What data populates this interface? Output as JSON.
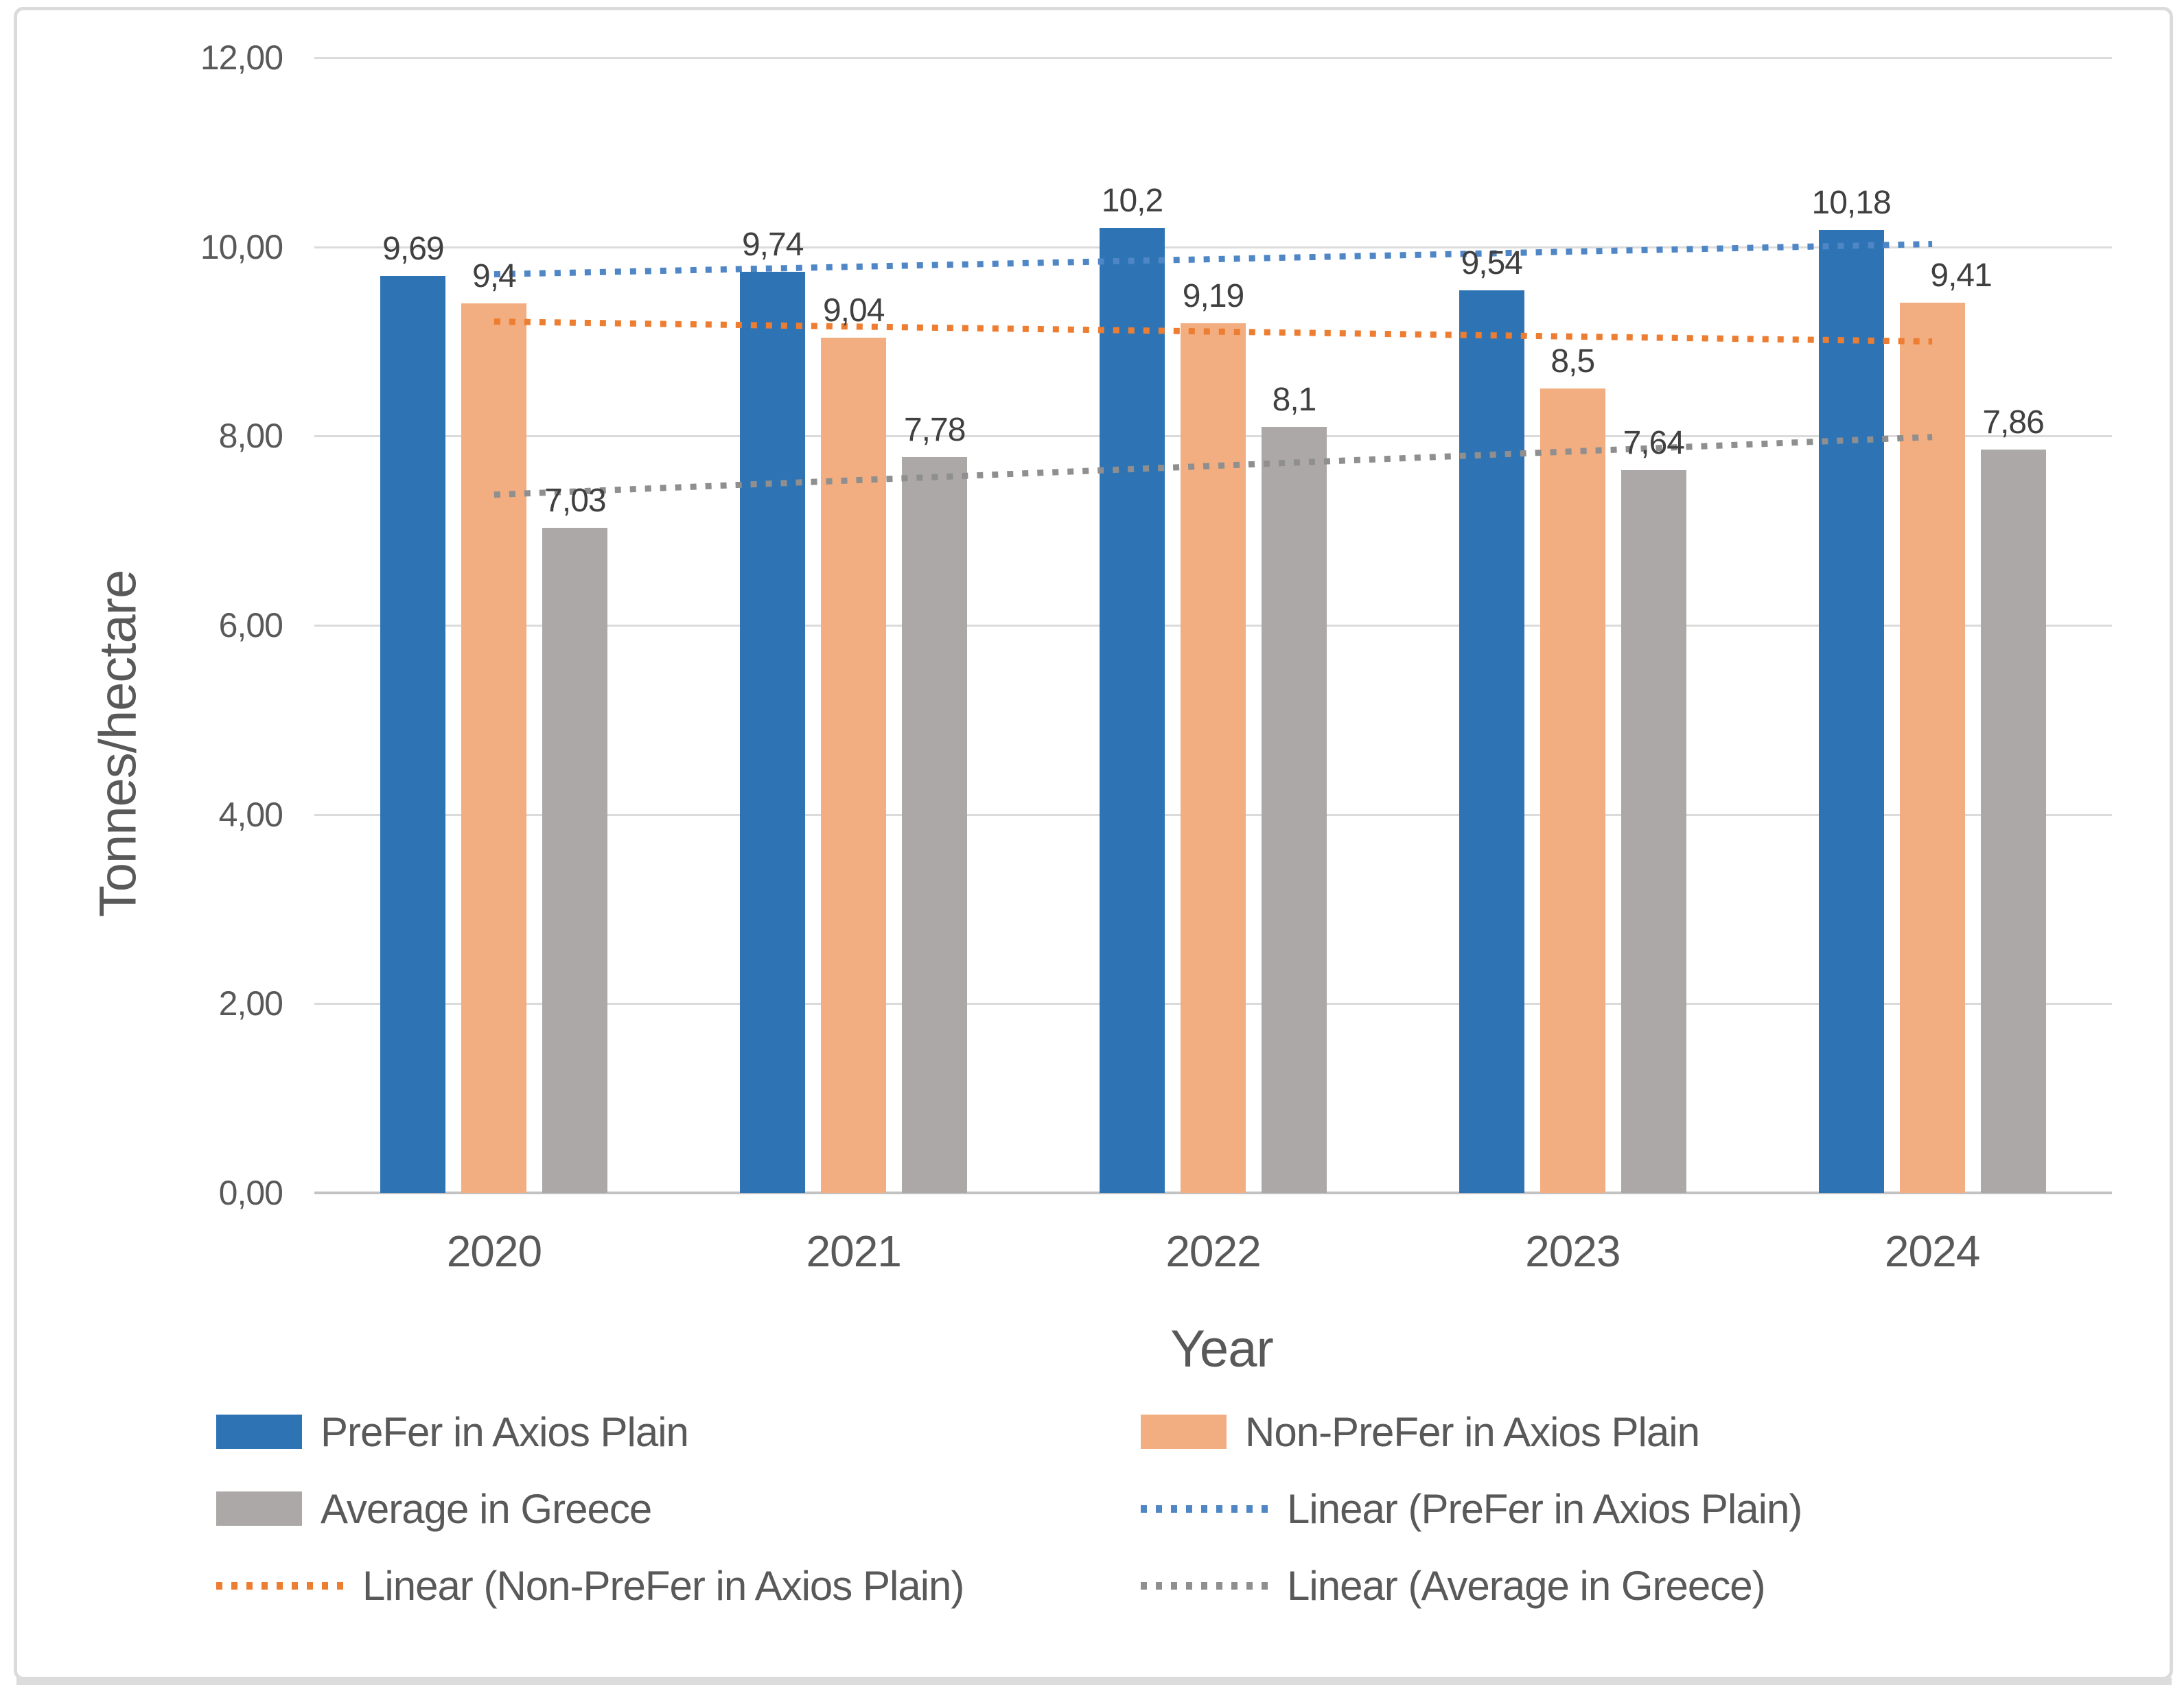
{
  "window": {
    "background": "#FFFFFF",
    "frame_border_color": "#DBDBDB",
    "bottom_band_color": "#DCDCDC"
  },
  "chart_data": {
    "type": "bar",
    "title": "",
    "xlabel": "Year",
    "ylabel": "Tonnes/hectare",
    "categories": [
      "2020",
      "2021",
      "2022",
      "2023",
      "2024"
    ],
    "series": [
      {
        "name": "PreFer in Axios Plain",
        "color": "#2E74B5",
        "values": [
          9.69,
          9.74,
          10.2,
          9.54,
          10.18
        ],
        "labels": [
          "9,69",
          "9,74",
          "10,2",
          "9,54",
          "10,18"
        ],
        "label_dx": [
          0,
          0,
          0,
          0,
          0
        ]
      },
      {
        "name": "Non-PreFer in Axios Plain",
        "color": "#F2AD80",
        "values": [
          9.4,
          9.04,
          9.19,
          8.5,
          9.41
        ],
        "labels": [
          "9,4",
          "9,04",
          "9,19",
          "8,5",
          "9,41"
        ],
        "label_dx": [
          0,
          0,
          0,
          0,
          42
        ]
      },
      {
        "name": "Average in Greece",
        "color": "#ABA8A7",
        "values": [
          7.03,
          7.78,
          8.1,
          7.64,
          7.86
        ],
        "labels": [
          "7,03",
          "7,78",
          "8,1",
          "7,64",
          "7,86"
        ],
        "label_dx": [
          0,
          0,
          0,
          0,
          0
        ]
      }
    ],
    "trendlines": [
      {
        "name": "Linear (PreFer in Axios Plain)",
        "color": "#4E86C6",
        "start": 9.71,
        "end": 10.03
      },
      {
        "name": "Linear (Non-PreFer in Axios Plain)",
        "color": "#ED7D31",
        "start": 9.21,
        "end": 9.0
      },
      {
        "name": "Linear (Average in Greece)",
        "color": "#8F8F8F",
        "start": 7.38,
        "end": 7.99
      }
    ],
    "ylim": [
      0,
      12
    ],
    "ytick_step": 2,
    "ytick_values": [
      0,
      2,
      4,
      6,
      8,
      10,
      12
    ],
    "ytick_labels": [
      "0,00",
      "2,00",
      "4,00",
      "6,00",
      "8,00",
      "10,00",
      "12,00"
    ],
    "grid": true,
    "legend_position": "bottom"
  },
  "legend": {
    "items": [
      {
        "label": "PreFer in Axios Plain",
        "swatch": "box",
        "color": "#2E74B5"
      },
      {
        "label": "Non-PreFer in Axios Plain",
        "swatch": "box",
        "color": "#F2AD80"
      },
      {
        "label": "Average in Greece",
        "swatch": "box",
        "color": "#ABA8A7"
      },
      {
        "label": "Linear (PreFer in Axios Plain)",
        "swatch": "dash",
        "color": "#4E86C6"
      },
      {
        "label": "Linear (Non-PreFer in Axios Plain)",
        "swatch": "dash",
        "color": "#ED7D31"
      },
      {
        "label": "Linear (Average in Greece)",
        "swatch": "dash",
        "color": "#8F8F8F"
      }
    ]
  },
  "colors": {
    "gridline": "#DBDBDB",
    "axis_line": "#C2C2C2",
    "tick_text": "#595959",
    "data_label_text": "#404040"
  }
}
